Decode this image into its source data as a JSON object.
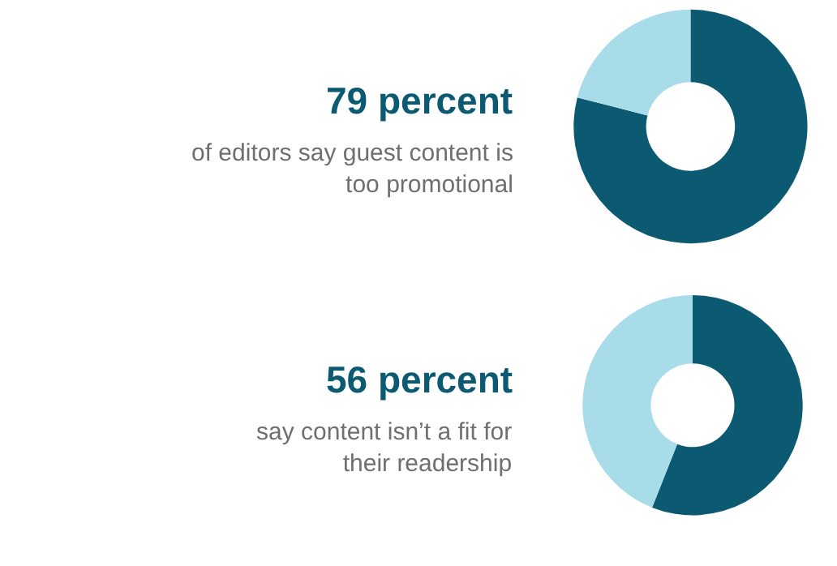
{
  "chart_data": [
    {
      "type": "donut",
      "title": "79 percent",
      "subtitle": "of editors say guest content is\ntoo promotional",
      "categories": [
        null,
        null
      ],
      "values": [
        79,
        21
      ],
      "colors": [
        "#0b5a72",
        "#a8dce8"
      ],
      "legend": false
    },
    {
      "type": "donut",
      "title": "56 percent",
      "subtitle": "say content isn’t a fit for\ntheir readership",
      "categories": [
        null,
        null
      ],
      "values": [
        56,
        44
      ],
      "colors": [
        "#0b5a72",
        "#a8dce8"
      ],
      "legend": false
    }
  ]
}
